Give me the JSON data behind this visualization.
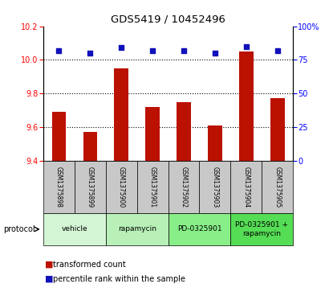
{
  "title": "GDS5419 / 10452496",
  "samples": [
    "GSM1375898",
    "GSM1375899",
    "GSM1375900",
    "GSM1375901",
    "GSM1375902",
    "GSM1375903",
    "GSM1375904",
    "GSM1375905"
  ],
  "transformed_counts": [
    9.69,
    9.57,
    9.95,
    9.72,
    9.75,
    9.61,
    10.05,
    9.77
  ],
  "percentile_ranks": [
    82,
    80,
    84,
    82,
    82,
    80,
    85,
    82
  ],
  "ylim_left": [
    9.4,
    10.2
  ],
  "ylim_right": [
    0,
    100
  ],
  "yticks_left": [
    9.4,
    9.6,
    9.8,
    10.0,
    10.2
  ],
  "yticks_right": [
    0,
    25,
    50,
    75,
    100
  ],
  "bar_color": "#bb1100",
  "dot_color": "#1111bb",
  "protocol_groups": [
    {
      "label": "vehicle",
      "start": 0,
      "end": 2,
      "color": "#d4f5d4"
    },
    {
      "label": "rapamycin",
      "start": 2,
      "end": 4,
      "color": "#b8f0b8"
    },
    {
      "label": "PD-0325901",
      "start": 4,
      "end": 6,
      "color": "#88ee88"
    },
    {
      "label": "PD-0325901 +\nrapamycin",
      "start": 6,
      "end": 8,
      "color": "#55dd55"
    }
  ],
  "sample_box_color": "#c8c8c8",
  "protocol_label": "protocol",
  "legend_bar_label": "transformed count",
  "legend_dot_label": "percentile rank within the sample",
  "grid_yticks": [
    9.6,
    9.8,
    10.0
  ],
  "bar_bottom": 9.4,
  "bar_width": 0.45
}
